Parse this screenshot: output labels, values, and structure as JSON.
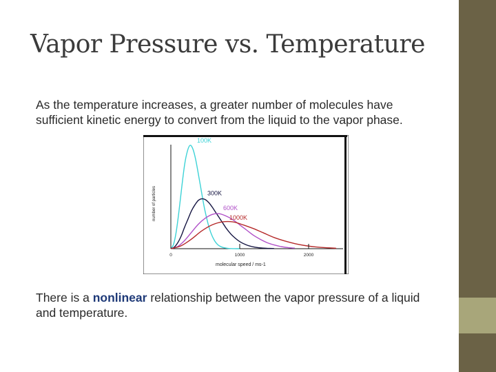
{
  "slide": {
    "title": "Vapor Pressure vs. Temperature",
    "paragraph1": "As the temperature increases, a greater number of molecules have sufficient kinetic energy to convert from the liquid to the vapor phase.",
    "paragraph2_before": "There is a ",
    "paragraph2_keyword": "nonlinear",
    "paragraph2_after": " relationship between the vapor pressure of a liquid and temperature."
  },
  "colors": {
    "sidebar_dark": "#6b6246",
    "sidebar_light": "#a8a67a",
    "keyword": "#1f3a78"
  },
  "chart_data": {
    "type": "line",
    "xlabel": "molecular speed / ms-1",
    "ylabel": "number of particles",
    "xlim": [
      0,
      2500
    ],
    "x_ticks": [
      {
        "value": 0,
        "label": "0"
      },
      {
        "value": 1000,
        "label": "1000"
      },
      {
        "value": 2000,
        "label": "2000"
      }
    ],
    "series": [
      {
        "name": "100K",
        "color": "#3cd2d6",
        "x": [
          0,
          40,
          80,
          120,
          160,
          200,
          240,
          280,
          320,
          360,
          400,
          440,
          480,
          520,
          560,
          600,
          640,
          680,
          720,
          760,
          800,
          850,
          900,
          950,
          1000
        ],
        "y": [
          0,
          0.6,
          2.4,
          5.2,
          8.4,
          11.3,
          13.1,
          13.9,
          13.4,
          12.0,
          10.0,
          7.9,
          5.8,
          4.1,
          2.7,
          1.7,
          1.0,
          0.55,
          0.3,
          0.16,
          0.08,
          0.03,
          0.01,
          0.0,
          0.0
        ]
      },
      {
        "name": "300K",
        "color": "#151542",
        "x": [
          0,
          50,
          100,
          150,
          200,
          250,
          300,
          350,
          400,
          450,
          500,
          550,
          600,
          650,
          700,
          750,
          800,
          850,
          900,
          1000,
          1100,
          1200,
          1300,
          1400,
          1500
        ],
        "y": [
          0,
          0.2,
          0.8,
          1.7,
          2.9,
          4.0,
          5.1,
          5.9,
          6.5,
          6.7,
          6.6,
          6.2,
          5.6,
          4.9,
          4.2,
          3.5,
          2.8,
          2.2,
          1.7,
          0.95,
          0.5,
          0.24,
          0.11,
          0.05,
          0.02
        ]
      },
      {
        "name": "600K",
        "color": "#b050c8",
        "x": [
          0,
          100,
          200,
          300,
          400,
          500,
          600,
          700,
          800,
          900,
          1000,
          1100,
          1200,
          1300,
          1400,
          1500,
          1600,
          1700,
          1800
        ],
        "y": [
          0,
          0.3,
          1.1,
          2.2,
          3.3,
          4.1,
          4.6,
          4.7,
          4.4,
          3.9,
          3.2,
          2.5,
          1.8,
          1.25,
          0.8,
          0.5,
          0.28,
          0.15,
          0.07
        ]
      },
      {
        "name": "1000K",
        "color": "#b52a2a",
        "x": [
          0,
          150,
          300,
          450,
          600,
          750,
          900,
          1050,
          1200,
          1350,
          1500,
          1650,
          1800,
          1950,
          2100,
          2250,
          2400
        ],
        "y": [
          0,
          0.4,
          1.3,
          2.4,
          3.2,
          3.6,
          3.6,
          3.2,
          2.7,
          2.1,
          1.5,
          1.05,
          0.68,
          0.42,
          0.24,
          0.13,
          0.06
        ]
      }
    ]
  }
}
